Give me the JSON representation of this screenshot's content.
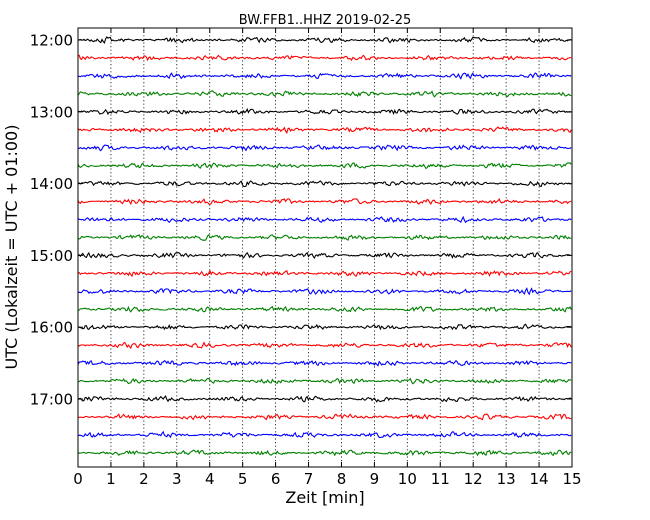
{
  "chart_data": {
    "type": "line",
    "title": "BW.FFB1..HHZ 2019-02-25",
    "xlabel": "Zeit  [min]",
    "ylabel": "UTC (Lokalzeit = UTC + 01:00)",
    "xlim": [
      0,
      15
    ],
    "x_ticks": [
      0,
      1,
      2,
      3,
      4,
      5,
      6,
      7,
      8,
      9,
      10,
      11,
      12,
      13,
      14,
      15
    ],
    "x_tick_labels": [
      "0",
      "1",
      "2",
      "3",
      "4",
      "5",
      "6",
      "7",
      "8",
      "9",
      "10",
      "11",
      "12",
      "13",
      "14",
      "15"
    ],
    "y_tick_labels": [
      "12:00",
      "13:00",
      "14:00",
      "15:00",
      "16:00",
      "17:00"
    ],
    "trace_interval_minutes": 15,
    "num_traces": 24,
    "start_time": "12:00",
    "trace_colors": [
      "#000000",
      "#ff0000",
      "#0000ff",
      "#008000"
    ],
    "grid_vertical": "dotted",
    "legend": "none"
  }
}
